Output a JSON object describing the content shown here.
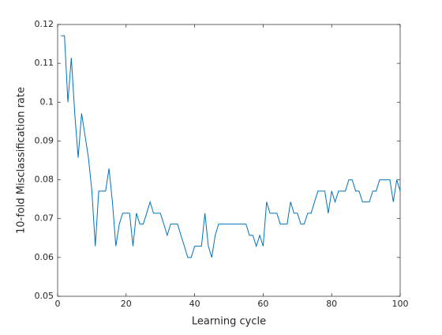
{
  "chart_data": {
    "type": "line",
    "xlabel": "Learning cycle",
    "ylabel": "10-fold Misclassification rate",
    "x": [
      1,
      2,
      3,
      4,
      5,
      6,
      7,
      8,
      9,
      10,
      11,
      12,
      13,
      14,
      15,
      16,
      17,
      18,
      19,
      20,
      21,
      22,
      23,
      24,
      25,
      26,
      27,
      28,
      29,
      30,
      31,
      32,
      33,
      34,
      35,
      36,
      37,
      38,
      39,
      40,
      41,
      42,
      43,
      44,
      45,
      46,
      47,
      48,
      49,
      50,
      51,
      52,
      53,
      54,
      55,
      56,
      57,
      58,
      59,
      60,
      61,
      62,
      63,
      64,
      65,
      66,
      67,
      68,
      69,
      70,
      71,
      72,
      73,
      74,
      75,
      76,
      77,
      78,
      79,
      80,
      81,
      82,
      83,
      84,
      85,
      86,
      87,
      88,
      89,
      90,
      91,
      92,
      93,
      94,
      95,
      96,
      97,
      98,
      99,
      100
    ],
    "series": [
      {
        "color": "#0072bd",
        "values": [
          0.1171,
          0.1171,
          0.1,
          0.1114,
          0.0971,
          0.0857,
          0.0971,
          0.0914,
          0.0857,
          0.0771,
          0.0629,
          0.0771,
          0.0771,
          0.0771,
          0.0829,
          0.0743,
          0.0629,
          0.0686,
          0.0714,
          0.0714,
          0.0714,
          0.0629,
          0.0714,
          0.0686,
          0.0686,
          0.0714,
          0.0743,
          0.0714,
          0.0714,
          0.0714,
          0.0686,
          0.0657,
          0.0686,
          0.0686,
          0.0686,
          0.0657,
          0.0629,
          0.06,
          0.06,
          0.0629,
          0.0629,
          0.0629,
          0.0714,
          0.0629,
          0.06,
          0.0657,
          0.0686,
          0.0686,
          0.0686,
          0.0686,
          0.0686,
          0.0686,
          0.0686,
          0.0686,
          0.0686,
          0.0657,
          0.0657,
          0.0629,
          0.0657,
          0.0629,
          0.0743,
          0.0714,
          0.0714,
          0.0714,
          0.0686,
          0.0686,
          0.0686,
          0.0743,
          0.0714,
          0.0714,
          0.0686,
          0.0686,
          0.0714,
          0.0714,
          0.0743,
          0.0771,
          0.0771,
          0.0771,
          0.0714,
          0.0771,
          0.0743,
          0.0771,
          0.0771,
          0.0771,
          0.08,
          0.08,
          0.0771,
          0.0771,
          0.0743,
          0.0743,
          0.0743,
          0.0771,
          0.0771,
          0.08,
          0.08,
          0.08,
          0.08,
          0.0743,
          0.08,
          0.0771
        ]
      }
    ],
    "xlim": [
      0,
      100
    ],
    "xticks": [
      0,
      20,
      40,
      60,
      80,
      100
    ],
    "ylim": [
      0.05,
      0.12
    ],
    "yticks": [
      0.05,
      0.06,
      0.07,
      0.08,
      0.09,
      0.1,
      0.11,
      0.12
    ],
    "grid": false
  }
}
